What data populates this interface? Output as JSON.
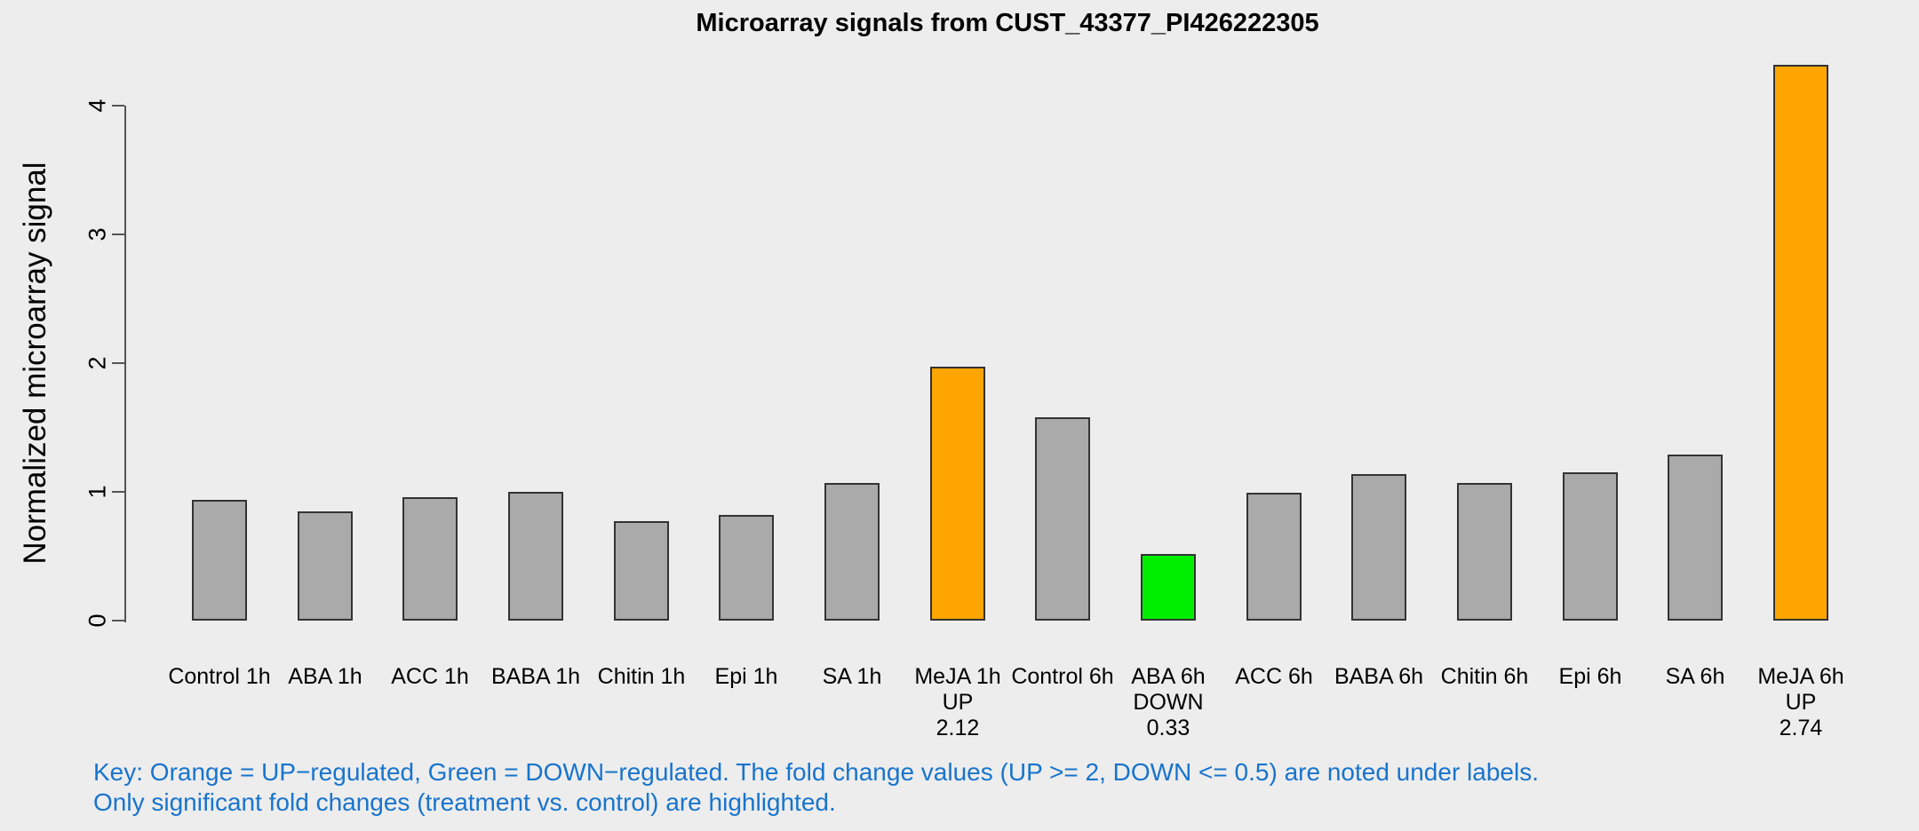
{
  "title": "Microarray signals from CUST_43377_PI426222305",
  "y_axis": {
    "label": "Normalized microarray signal",
    "ticks": [
      "0",
      "1",
      "2",
      "3",
      "4"
    ],
    "min": 0,
    "max": 4
  },
  "key": {
    "line1": "Key: Orange = UP−regulated, Green = DOWN−regulated. The fold change values (UP >= 2, DOWN <= 0.5) are noted under labels.",
    "line2": "Only significant fold changes (treatment vs. control) are highlighted."
  },
  "colors": {
    "background": "#EDEDED",
    "bar_gray": "#AAAAAA",
    "bar_orange": "#FFA500",
    "bar_green": "#00EE00",
    "bar_border": "#333333",
    "axis": "#555555",
    "key_text": "#1874CD",
    "text": "#000000"
  },
  "chart_data": {
    "type": "bar",
    "title": "Microarray signals from CUST_43377_PI426222305",
    "xlabel": "",
    "ylabel": "Normalized microarray signal",
    "ylim": [
      0,
      4.35
    ],
    "yticks": [
      0,
      1,
      2,
      3,
      4
    ],
    "grid": false,
    "legend_position": "none",
    "categories": [
      "Control 1h",
      "ABA 1h",
      "ACC 1h",
      "BABA 1h",
      "Chitin 1h",
      "Epi 1h",
      "SA 1h",
      "MeJA 1h",
      "Control 6h",
      "ABA 6h",
      "ACC 6h",
      "BABA 6h",
      "Chitin 6h",
      "Epi 6h",
      "SA 6h",
      "MeJA 6h"
    ],
    "values": [
      0.94,
      0.85,
      0.96,
      1.0,
      0.77,
      0.82,
      1.07,
      1.97,
      1.58,
      0.52,
      0.99,
      1.14,
      1.07,
      1.15,
      1.29,
      4.32
    ],
    "bars": [
      {
        "label": "Control 1h",
        "value": 0.94,
        "color": "gray",
        "regulation": "",
        "fold": ""
      },
      {
        "label": "ABA 1h",
        "value": 0.85,
        "color": "gray",
        "regulation": "",
        "fold": ""
      },
      {
        "label": "ACC 1h",
        "value": 0.96,
        "color": "gray",
        "regulation": "",
        "fold": ""
      },
      {
        "label": "BABA 1h",
        "value": 1.0,
        "color": "gray",
        "regulation": "",
        "fold": ""
      },
      {
        "label": "Chitin 1h",
        "value": 0.77,
        "color": "gray",
        "regulation": "",
        "fold": ""
      },
      {
        "label": "Epi 1h",
        "value": 0.82,
        "color": "gray",
        "regulation": "",
        "fold": ""
      },
      {
        "label": "SA 1h",
        "value": 1.07,
        "color": "gray",
        "regulation": "",
        "fold": ""
      },
      {
        "label": "MeJA 1h",
        "value": 1.97,
        "color": "orange",
        "regulation": "UP",
        "fold": "2.12"
      },
      {
        "label": "Control 6h",
        "value": 1.58,
        "color": "gray",
        "regulation": "",
        "fold": ""
      },
      {
        "label": "ABA 6h",
        "value": 0.52,
        "color": "green",
        "regulation": "DOWN",
        "fold": "0.33"
      },
      {
        "label": "ACC 6h",
        "value": 0.99,
        "color": "gray",
        "regulation": "",
        "fold": ""
      },
      {
        "label": "BABA 6h",
        "value": 1.14,
        "color": "gray",
        "regulation": "",
        "fold": ""
      },
      {
        "label": "Chitin 6h",
        "value": 1.07,
        "color": "gray",
        "regulation": "",
        "fold": ""
      },
      {
        "label": "Epi 6h",
        "value": 1.15,
        "color": "gray",
        "regulation": "",
        "fold": ""
      },
      {
        "label": "SA 6h",
        "value": 1.29,
        "color": "gray",
        "regulation": "",
        "fold": ""
      },
      {
        "label": "MeJA 6h",
        "value": 4.32,
        "color": "orange",
        "regulation": "UP",
        "fold": "2.74"
      }
    ]
  }
}
